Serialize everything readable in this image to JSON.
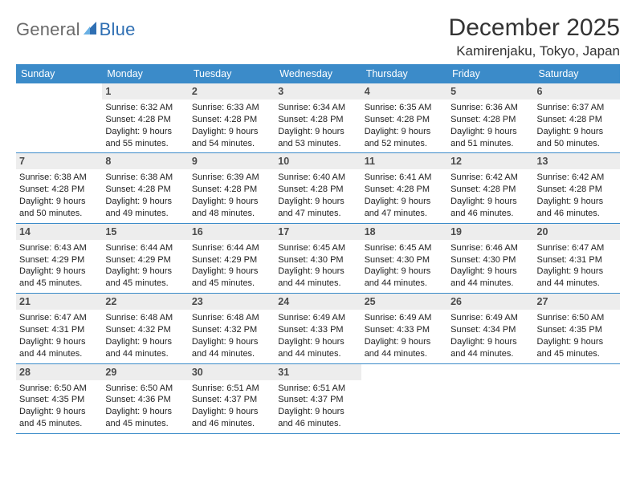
{
  "logo": {
    "general": "General",
    "blue": "Blue"
  },
  "title": "December 2025",
  "location": "Kamirenjaku, Tokyo, Japan",
  "colors": {
    "header_bg": "#3b8bc9",
    "header_text": "#ffffff",
    "daynum_bg": "#ededed",
    "daynum_text": "#4a4a4a",
    "body_text": "#222222",
    "rule": "#3b8bc9",
    "logo_gray": "#6a6a6a",
    "logo_blue": "#2f6fb3"
  },
  "weekdays": [
    "Sunday",
    "Monday",
    "Tuesday",
    "Wednesday",
    "Thursday",
    "Friday",
    "Saturday"
  ],
  "weeks": [
    [
      {
        "n": "",
        "sr": "",
        "ss": "",
        "dl": ""
      },
      {
        "n": "1",
        "sr": "Sunrise: 6:32 AM",
        "ss": "Sunset: 4:28 PM",
        "dl": "Daylight: 9 hours and 55 minutes."
      },
      {
        "n": "2",
        "sr": "Sunrise: 6:33 AM",
        "ss": "Sunset: 4:28 PM",
        "dl": "Daylight: 9 hours and 54 minutes."
      },
      {
        "n": "3",
        "sr": "Sunrise: 6:34 AM",
        "ss": "Sunset: 4:28 PM",
        "dl": "Daylight: 9 hours and 53 minutes."
      },
      {
        "n": "4",
        "sr": "Sunrise: 6:35 AM",
        "ss": "Sunset: 4:28 PM",
        "dl": "Daylight: 9 hours and 52 minutes."
      },
      {
        "n": "5",
        "sr": "Sunrise: 6:36 AM",
        "ss": "Sunset: 4:28 PM",
        "dl": "Daylight: 9 hours and 51 minutes."
      },
      {
        "n": "6",
        "sr": "Sunrise: 6:37 AM",
        "ss": "Sunset: 4:28 PM",
        "dl": "Daylight: 9 hours and 50 minutes."
      }
    ],
    [
      {
        "n": "7",
        "sr": "Sunrise: 6:38 AM",
        "ss": "Sunset: 4:28 PM",
        "dl": "Daylight: 9 hours and 50 minutes."
      },
      {
        "n": "8",
        "sr": "Sunrise: 6:38 AM",
        "ss": "Sunset: 4:28 PM",
        "dl": "Daylight: 9 hours and 49 minutes."
      },
      {
        "n": "9",
        "sr": "Sunrise: 6:39 AM",
        "ss": "Sunset: 4:28 PM",
        "dl": "Daylight: 9 hours and 48 minutes."
      },
      {
        "n": "10",
        "sr": "Sunrise: 6:40 AM",
        "ss": "Sunset: 4:28 PM",
        "dl": "Daylight: 9 hours and 47 minutes."
      },
      {
        "n": "11",
        "sr": "Sunrise: 6:41 AM",
        "ss": "Sunset: 4:28 PM",
        "dl": "Daylight: 9 hours and 47 minutes."
      },
      {
        "n": "12",
        "sr": "Sunrise: 6:42 AM",
        "ss": "Sunset: 4:28 PM",
        "dl": "Daylight: 9 hours and 46 minutes."
      },
      {
        "n": "13",
        "sr": "Sunrise: 6:42 AM",
        "ss": "Sunset: 4:28 PM",
        "dl": "Daylight: 9 hours and 46 minutes."
      }
    ],
    [
      {
        "n": "14",
        "sr": "Sunrise: 6:43 AM",
        "ss": "Sunset: 4:29 PM",
        "dl": "Daylight: 9 hours and 45 minutes."
      },
      {
        "n": "15",
        "sr": "Sunrise: 6:44 AM",
        "ss": "Sunset: 4:29 PM",
        "dl": "Daylight: 9 hours and 45 minutes."
      },
      {
        "n": "16",
        "sr": "Sunrise: 6:44 AM",
        "ss": "Sunset: 4:29 PM",
        "dl": "Daylight: 9 hours and 45 minutes."
      },
      {
        "n": "17",
        "sr": "Sunrise: 6:45 AM",
        "ss": "Sunset: 4:30 PM",
        "dl": "Daylight: 9 hours and 44 minutes."
      },
      {
        "n": "18",
        "sr": "Sunrise: 6:45 AM",
        "ss": "Sunset: 4:30 PM",
        "dl": "Daylight: 9 hours and 44 minutes."
      },
      {
        "n": "19",
        "sr": "Sunrise: 6:46 AM",
        "ss": "Sunset: 4:30 PM",
        "dl": "Daylight: 9 hours and 44 minutes."
      },
      {
        "n": "20",
        "sr": "Sunrise: 6:47 AM",
        "ss": "Sunset: 4:31 PM",
        "dl": "Daylight: 9 hours and 44 minutes."
      }
    ],
    [
      {
        "n": "21",
        "sr": "Sunrise: 6:47 AM",
        "ss": "Sunset: 4:31 PM",
        "dl": "Daylight: 9 hours and 44 minutes."
      },
      {
        "n": "22",
        "sr": "Sunrise: 6:48 AM",
        "ss": "Sunset: 4:32 PM",
        "dl": "Daylight: 9 hours and 44 minutes."
      },
      {
        "n": "23",
        "sr": "Sunrise: 6:48 AM",
        "ss": "Sunset: 4:32 PM",
        "dl": "Daylight: 9 hours and 44 minutes."
      },
      {
        "n": "24",
        "sr": "Sunrise: 6:49 AM",
        "ss": "Sunset: 4:33 PM",
        "dl": "Daylight: 9 hours and 44 minutes."
      },
      {
        "n": "25",
        "sr": "Sunrise: 6:49 AM",
        "ss": "Sunset: 4:33 PM",
        "dl": "Daylight: 9 hours and 44 minutes."
      },
      {
        "n": "26",
        "sr": "Sunrise: 6:49 AM",
        "ss": "Sunset: 4:34 PM",
        "dl": "Daylight: 9 hours and 44 minutes."
      },
      {
        "n": "27",
        "sr": "Sunrise: 6:50 AM",
        "ss": "Sunset: 4:35 PM",
        "dl": "Daylight: 9 hours and 45 minutes."
      }
    ],
    [
      {
        "n": "28",
        "sr": "Sunrise: 6:50 AM",
        "ss": "Sunset: 4:35 PM",
        "dl": "Daylight: 9 hours and 45 minutes."
      },
      {
        "n": "29",
        "sr": "Sunrise: 6:50 AM",
        "ss": "Sunset: 4:36 PM",
        "dl": "Daylight: 9 hours and 45 minutes."
      },
      {
        "n": "30",
        "sr": "Sunrise: 6:51 AM",
        "ss": "Sunset: 4:37 PM",
        "dl": "Daylight: 9 hours and 46 minutes."
      },
      {
        "n": "31",
        "sr": "Sunrise: 6:51 AM",
        "ss": "Sunset: 4:37 PM",
        "dl": "Daylight: 9 hours and 46 minutes."
      },
      {
        "n": "",
        "sr": "",
        "ss": "",
        "dl": ""
      },
      {
        "n": "",
        "sr": "",
        "ss": "",
        "dl": ""
      },
      {
        "n": "",
        "sr": "",
        "ss": "",
        "dl": ""
      }
    ]
  ]
}
